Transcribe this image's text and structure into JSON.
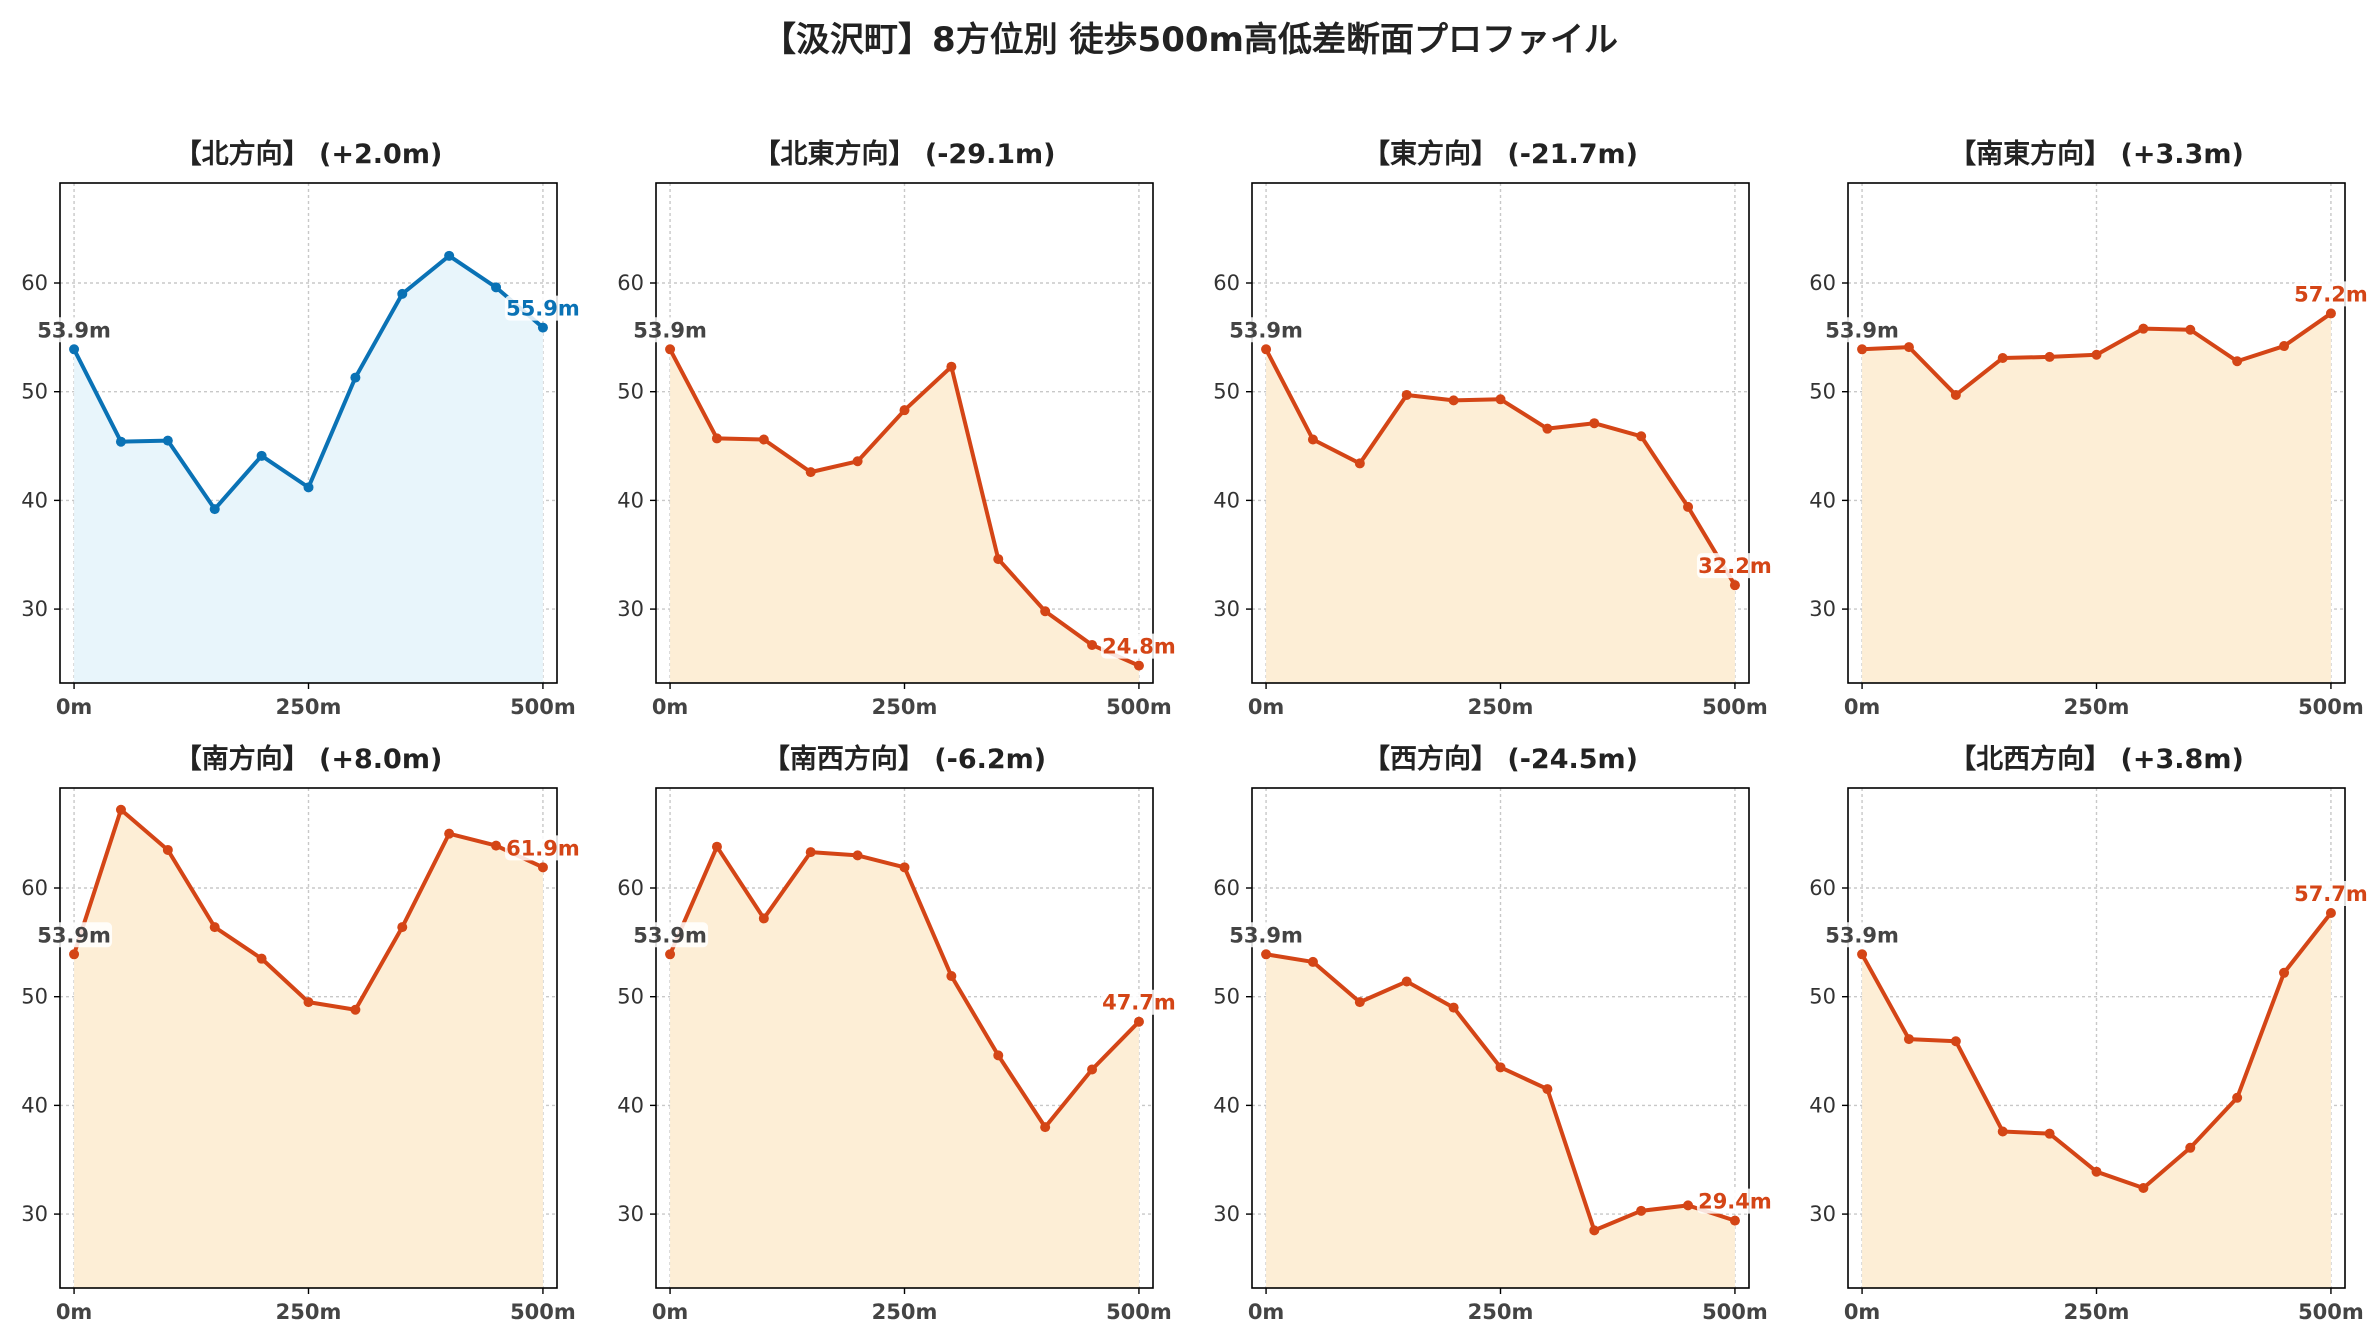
{
  "title": "【汲沢町】8方位別 徒歩500m高低差断面プロファイル",
  "colors": {
    "north_line": "#0a72b5",
    "north_fill": "#e8f5fb",
    "other_line": "#d44516",
    "other_fill": "#fdeed6",
    "start_label": "#444444"
  },
  "chart_data": [
    {
      "type": "area",
      "title": "【北方向】 (+2.0m)",
      "x": [
        0,
        50,
        100,
        150,
        200,
        250,
        300,
        350,
        400,
        450,
        500
      ],
      "y": [
        53.9,
        45.4,
        45.5,
        39.2,
        44.1,
        41.2,
        51.3,
        59.0,
        62.5,
        59.6,
        55.9
      ],
      "start_label": "53.9m",
      "end_label": "55.9m",
      "style": "north",
      "xticks": [
        0,
        250,
        500
      ],
      "xtick_labels": [
        "0m",
        "250m",
        "500m"
      ],
      "yticks": [
        30,
        40,
        50,
        60
      ],
      "xlim": [
        -15,
        515
      ],
      "ylim": [
        23.2,
        69.2
      ],
      "grid": true
    },
    {
      "type": "area",
      "title": "【北東方向】 (-29.1m)",
      "x": [
        0,
        50,
        100,
        150,
        200,
        250,
        300,
        350,
        400,
        450,
        500
      ],
      "y": [
        53.9,
        45.7,
        45.6,
        42.6,
        43.6,
        48.3,
        52.3,
        34.6,
        29.8,
        26.7,
        24.8
      ],
      "start_label": "53.9m",
      "end_label": "24.8m",
      "style": "other",
      "xticks": [
        0,
        250,
        500
      ],
      "xtick_labels": [
        "0m",
        "250m",
        "500m"
      ],
      "yticks": [
        30,
        40,
        50,
        60
      ],
      "xlim": [
        -15,
        515
      ],
      "ylim": [
        23.2,
        69.2
      ],
      "grid": true
    },
    {
      "type": "area",
      "title": "【東方向】 (-21.7m)",
      "x": [
        0,
        50,
        100,
        150,
        200,
        250,
        300,
        350,
        400,
        450,
        500
      ],
      "y": [
        53.9,
        45.6,
        43.4,
        49.7,
        49.2,
        49.3,
        46.6,
        47.1,
        45.9,
        39.4,
        32.2
      ],
      "start_label": "53.9m",
      "end_label": "32.2m",
      "style": "other",
      "xticks": [
        0,
        250,
        500
      ],
      "xtick_labels": [
        "0m",
        "250m",
        "500m"
      ],
      "yticks": [
        30,
        40,
        50,
        60
      ],
      "xlim": [
        -15,
        515
      ],
      "ylim": [
        23.2,
        69.2
      ],
      "grid": true
    },
    {
      "type": "area",
      "title": "【南東方向】 (+3.3m)",
      "x": [
        0,
        50,
        100,
        150,
        200,
        250,
        300,
        350,
        400,
        450,
        500
      ],
      "y": [
        53.9,
        54.1,
        49.7,
        53.1,
        53.2,
        53.4,
        55.8,
        55.7,
        52.8,
        54.2,
        57.2
      ],
      "start_label": "53.9m",
      "end_label": "57.2m",
      "style": "other",
      "xticks": [
        0,
        250,
        500
      ],
      "xtick_labels": [
        "0m",
        "250m",
        "500m"
      ],
      "yticks": [
        30,
        40,
        50,
        60
      ],
      "xlim": [
        -15,
        515
      ],
      "ylim": [
        23.2,
        69.2
      ],
      "grid": true
    },
    {
      "type": "area",
      "title": "【南方向】 (+8.0m)",
      "x": [
        0,
        50,
        100,
        150,
        200,
        250,
        300,
        350,
        400,
        450,
        500
      ],
      "y": [
        53.9,
        67.2,
        63.5,
        56.4,
        53.5,
        49.5,
        48.8,
        56.4,
        65.0,
        63.9,
        61.9
      ],
      "start_label": "53.9m",
      "end_label": "61.9m",
      "style": "other",
      "xticks": [
        0,
        250,
        500
      ],
      "xtick_labels": [
        "0m",
        "250m",
        "500m"
      ],
      "yticks": [
        30,
        40,
        50,
        60
      ],
      "xlim": [
        -15,
        515
      ],
      "ylim": [
        23.2,
        69.2
      ],
      "grid": true
    },
    {
      "type": "area",
      "title": "【南西方向】 (-6.2m)",
      "x": [
        0,
        50,
        100,
        150,
        200,
        250,
        300,
        350,
        400,
        450,
        500
      ],
      "y": [
        53.9,
        63.8,
        57.2,
        63.3,
        63.0,
        61.9,
        51.9,
        44.6,
        38.0,
        43.3,
        47.7
      ],
      "start_label": "53.9m",
      "end_label": "47.7m",
      "style": "other",
      "xticks": [
        0,
        250,
        500
      ],
      "xtick_labels": [
        "0m",
        "250m",
        "500m"
      ],
      "yticks": [
        30,
        40,
        50,
        60
      ],
      "xlim": [
        -15,
        515
      ],
      "ylim": [
        23.2,
        69.2
      ],
      "grid": true
    },
    {
      "type": "area",
      "title": "【西方向】 (-24.5m)",
      "x": [
        0,
        50,
        100,
        150,
        200,
        250,
        300,
        350,
        400,
        450,
        500
      ],
      "y": [
        53.9,
        53.2,
        49.5,
        51.4,
        49.0,
        43.5,
        41.5,
        28.5,
        30.3,
        30.8,
        29.4
      ],
      "start_label": "53.9m",
      "end_label": "29.4m",
      "style": "other",
      "xticks": [
        0,
        250,
        500
      ],
      "xtick_labels": [
        "0m",
        "250m",
        "500m"
      ],
      "yticks": [
        30,
        40,
        50,
        60
      ],
      "xlim": [
        -15,
        515
      ],
      "ylim": [
        23.2,
        69.2
      ],
      "grid": true
    },
    {
      "type": "area",
      "title": "【北西方向】 (+3.8m)",
      "x": [
        0,
        50,
        100,
        150,
        200,
        250,
        300,
        350,
        400,
        450,
        500
      ],
      "y": [
        53.9,
        46.1,
        45.9,
        37.6,
        37.4,
        33.9,
        32.4,
        36.1,
        40.7,
        52.2,
        57.7
      ],
      "start_label": "53.9m",
      "end_label": "57.7m",
      "style": "other",
      "xticks": [
        0,
        250,
        500
      ],
      "xtick_labels": [
        "0m",
        "250m",
        "500m"
      ],
      "yticks": [
        30,
        40,
        50,
        60
      ],
      "xlim": [
        -15,
        515
      ],
      "ylim": [
        23.2,
        69.2
      ],
      "grid": true
    }
  ]
}
